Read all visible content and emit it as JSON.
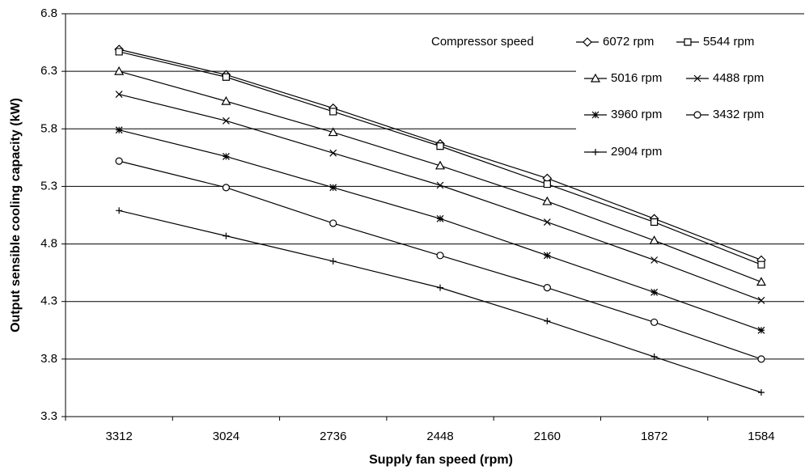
{
  "chart_data": {
    "type": "line",
    "x_label": "Supply fan speed (rpm)",
    "y_label": "Output sensible cooling capacity (kW)",
    "legend_title": "Compressor speed",
    "categories": [
      "3312",
      "3024",
      "2736",
      "2448",
      "2160",
      "1872",
      "1584"
    ],
    "ylim": [
      3.3,
      6.8
    ],
    "yticks": [
      3.3,
      3.8,
      4.3,
      4.8,
      5.3,
      5.8,
      6.3,
      6.8
    ],
    "grid": true,
    "series": [
      {
        "name": "6072 rpm",
        "color": "#000000",
        "marker": "diamond",
        "values": [
          6.49,
          6.27,
          5.98,
          5.67,
          5.37,
          5.02,
          4.66
        ]
      },
      {
        "name": "5544 rpm",
        "color": "#000000",
        "marker": "square",
        "values": [
          6.47,
          6.25,
          5.95,
          5.65,
          5.32,
          4.99,
          4.62
        ]
      },
      {
        "name": "5016 rpm",
        "color": "#000000",
        "marker": "triangle",
        "values": [
          6.3,
          6.04,
          5.77,
          5.48,
          5.17,
          4.83,
          4.47
        ]
      },
      {
        "name": "4488 rpm",
        "color": "#000000",
        "marker": "x",
        "values": [
          6.1,
          5.87,
          5.59,
          5.31,
          4.99,
          4.66,
          4.31
        ]
      },
      {
        "name": "3960 rpm",
        "color": "#000000",
        "marker": "asterisk",
        "values": [
          5.79,
          5.56,
          5.29,
          5.02,
          4.7,
          4.38,
          4.05
        ]
      },
      {
        "name": "3432 rpm",
        "color": "#000000",
        "marker": "circle",
        "values": [
          5.52,
          5.29,
          4.98,
          4.7,
          4.42,
          4.12,
          3.8
        ]
      },
      {
        "name": "2904 rpm",
        "color": "#000000",
        "marker": "plus",
        "values": [
          5.09,
          4.87,
          4.65,
          4.42,
          4.13,
          3.82,
          3.51
        ]
      }
    ]
  }
}
